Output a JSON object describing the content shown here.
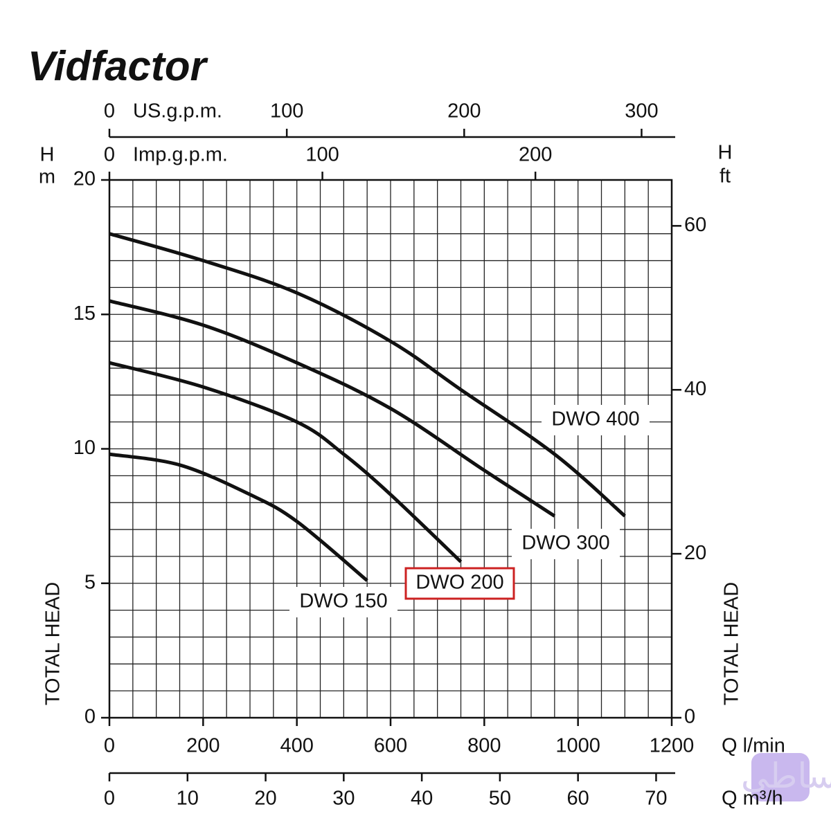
{
  "logo": "Vidfactor",
  "watermark": "باتساطی",
  "chart_data": {
    "type": "line",
    "xlabel": "Q l/min",
    "xlim": [
      0,
      1200
    ],
    "xticks": [
      0,
      200,
      400,
      600,
      800,
      1000,
      1200
    ],
    "x_minor_step": 50,
    "y_symbol": "H",
    "y_unit": "m",
    "ylabel": "TOTAL HEAD",
    "ylim": [
      0,
      20
    ],
    "yticks": [
      0,
      5,
      10,
      15,
      20
    ],
    "y_minor_step": 1,
    "y2_symbol": "H",
    "y2_unit": "ft",
    "y2label": "TOTAL HEAD",
    "y2lim": [
      0,
      65.6
    ],
    "y2ticks": [
      0,
      20,
      40,
      60
    ],
    "top_axes": [
      {
        "label": "US.g.p.m.",
        "xlim": [
          0,
          317
        ],
        "xticks": [
          0,
          100,
          200,
          300
        ]
      },
      {
        "label": "Imp.g.p.m.",
        "xlim": [
          0,
          264
        ],
        "xticks": [
          0,
          100,
          200
        ]
      }
    ],
    "bottom_axis": {
      "label": "Q m³/h",
      "xlim": [
        0,
        72
      ],
      "xticks": [
        0,
        10,
        20,
        30,
        40,
        50,
        60,
        70
      ]
    },
    "grid": true,
    "series": [
      {
        "name": "DWO 400",
        "color": "#111111",
        "x": [
          0,
          200,
          400,
          600,
          750,
          950,
          1100
        ],
        "values": [
          18,
          17,
          15.8,
          14,
          12.2,
          9.8,
          7.5
        ]
      },
      {
        "name": "DWO 300",
        "color": "#111111",
        "x": [
          0,
          200,
          400,
          600,
          800,
          950
        ],
        "values": [
          15.5,
          14.6,
          13.2,
          11.5,
          9.2,
          7.5
        ]
      },
      {
        "name": "DWO 200",
        "color": "#111111",
        "x": [
          0,
          200,
          400,
          500,
          600,
          750
        ],
        "values": [
          13.2,
          12.3,
          11,
          9.8,
          8.3,
          5.8
        ],
        "highlight": "#cc2222"
      },
      {
        "name": "DWO 150",
        "color": "#111111",
        "x": [
          0,
          150,
          300,
          400,
          550
        ],
        "values": [
          9.8,
          9.4,
          8.3,
          7.3,
          5.1
        ]
      }
    ]
  }
}
